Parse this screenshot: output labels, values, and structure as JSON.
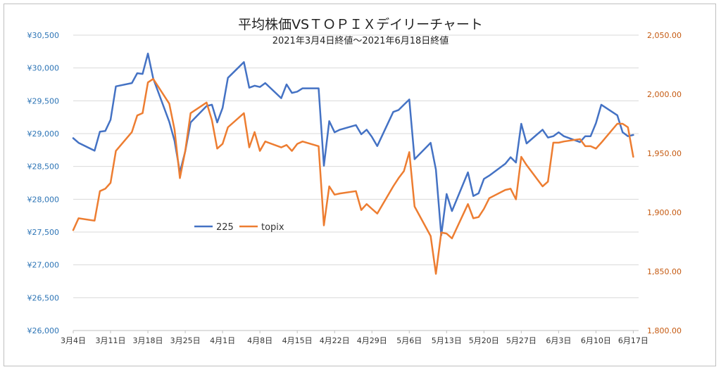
{
  "chart_data": {
    "type": "line",
    "title": "平均株価VSＴＯＰＩＸデイリーチャート",
    "subtitle": "2021年3月4日終値～2021年6月18日終値",
    "x_tick_labels": [
      "3月4日",
      "3月11日",
      "3月18日",
      "3月25日",
      "4月1日",
      "4月8日",
      "4月15日",
      "4月22日",
      "4月29日",
      "5月6日",
      "5月13日",
      "5月20日",
      "5月27日",
      "6月3日",
      "6月10日",
      "6月17日"
    ],
    "x_range": [
      0,
      106
    ],
    "y_left": {
      "min": 26000,
      "max": 30500,
      "step": 500,
      "labels": [
        "¥26,000",
        "¥26,500",
        "¥27,000",
        "¥27,500",
        "¥28,000",
        "¥28,500",
        "¥29,000",
        "¥29,500",
        "¥30,000",
        "¥30,500"
      ]
    },
    "y_right": {
      "min": 1800,
      "max": 2050,
      "step": 50,
      "labels": [
        "1,800.00",
        "1,850.00",
        "1,900.00",
        "1,950.00",
        "2,000.00",
        "2,050.00"
      ]
    },
    "legend_position": "center-left",
    "series": [
      {
        "name": "225",
        "axis": "left",
        "color": "#4472c4",
        "x": [
          0,
          1,
          4,
          5,
          6,
          7,
          8,
          11,
          12,
          13,
          14,
          15,
          18,
          19,
          20,
          21,
          22,
          25,
          26,
          27,
          28,
          29,
          32,
          33,
          34,
          35,
          36,
          39,
          40,
          41,
          42,
          43,
          46,
          47,
          48,
          49,
          50,
          53,
          54,
          55,
          56,
          57,
          60,
          61,
          62,
          63,
          64,
          67,
          68,
          69,
          70,
          71,
          74,
          75,
          76,
          77,
          78,
          81,
          82,
          83,
          84,
          85,
          88,
          89,
          90,
          91,
          92,
          95,
          96,
          97,
          98,
          99,
          102,
          103,
          104,
          105
        ],
        "values": [
          28930,
          28860,
          28740,
          29030,
          29040,
          29210,
          29720,
          29770,
          29920,
          29910,
          30220,
          29840,
          29180,
          28890,
          28410,
          28730,
          29170,
          29420,
          29440,
          29170,
          29390,
          29850,
          30090,
          29700,
          29730,
          29710,
          29770,
          29540,
          29750,
          29620,
          29640,
          29690,
          29690,
          28510,
          29190,
          29020,
          29060,
          29130,
          28990,
          29060,
          28950,
          28810,
          29330,
          29360,
          29440,
          29520,
          28610,
          28860,
          28450,
          27450,
          28080,
          27820,
          28410,
          28050,
          28090,
          28310,
          28360,
          28540,
          28640,
          28560,
          29150,
          28850,
          29060,
          28940,
          28960,
          29020,
          28960,
          28870,
          28960,
          28960,
          29160,
          29440,
          29280,
          29020,
          28960,
          28980
        ]
      },
      {
        "name": "topix",
        "axis": "right",
        "color": "#ed7d31",
        "x": [
          0,
          1,
          4,
          5,
          6,
          7,
          8,
          11,
          12,
          13,
          14,
          15,
          18,
          19,
          20,
          21,
          22,
          25,
          26,
          27,
          28,
          29,
          32,
          33,
          34,
          35,
          36,
          39,
          40,
          41,
          42,
          43,
          46,
          47,
          48,
          49,
          50,
          53,
          54,
          55,
          56,
          57,
          60,
          61,
          62,
          63,
          64,
          67,
          68,
          69,
          70,
          71,
          74,
          75,
          76,
          77,
          78,
          81,
          82,
          83,
          84,
          85,
          88,
          89,
          90,
          91,
          92,
          95,
          96,
          97,
          98,
          99,
          102,
          103,
          104,
          105
        ],
        "values": [
          1885,
          1895,
          1893,
          1918,
          1920,
          1925,
          1952,
          1968,
          1982,
          1984,
          2010,
          2013,
          1992,
          1970,
          1929,
          1952,
          1984,
          1993,
          1978,
          1954,
          1958,
          1972,
          1984,
          1955,
          1968,
          1952,
          1960,
          1955,
          1957,
          1952,
          1958,
          1960,
          1956,
          1889,
          1922,
          1915,
          1916,
          1918,
          1902,
          1907,
          1903,
          1899,
          1922,
          1929,
          1935,
          1951,
          1905,
          1880,
          1848,
          1883,
          1882,
          1878,
          1907,
          1895,
          1896,
          1903,
          1912,
          1919,
          1920,
          1911,
          1947,
          1940,
          1922,
          1926,
          1959,
          1959,
          1960,
          1962,
          1956,
          1956,
          1954,
          1959,
          1975,
          1975,
          1972,
          1947
        ]
      }
    ]
  }
}
